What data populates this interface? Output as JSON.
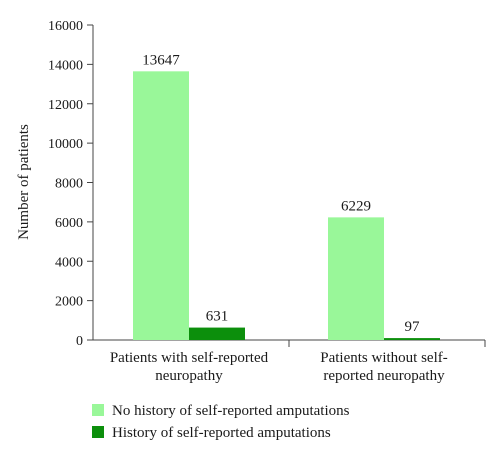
{
  "chart_data": {
    "type": "bar",
    "title": "",
    "xlabel": "",
    "ylabel": "Number of patients",
    "ylim": [
      0,
      16000
    ],
    "yticks": [
      0,
      2000,
      4000,
      6000,
      8000,
      10000,
      12000,
      14000,
      16000
    ],
    "grid": false,
    "legend_position": "bottom",
    "categories": [
      [
        "Patients with self-reported",
        "neuropathy"
      ],
      [
        "Patients without self-",
        "reported neuropathy"
      ]
    ],
    "series": [
      {
        "name": "No history of self-reported amputations",
        "color": "#99f799",
        "values": [
          13647,
          6229
        ]
      },
      {
        "name": "History of self-reported amputations",
        "color": "#0c8f0c",
        "values": [
          631,
          97
        ]
      }
    ]
  }
}
